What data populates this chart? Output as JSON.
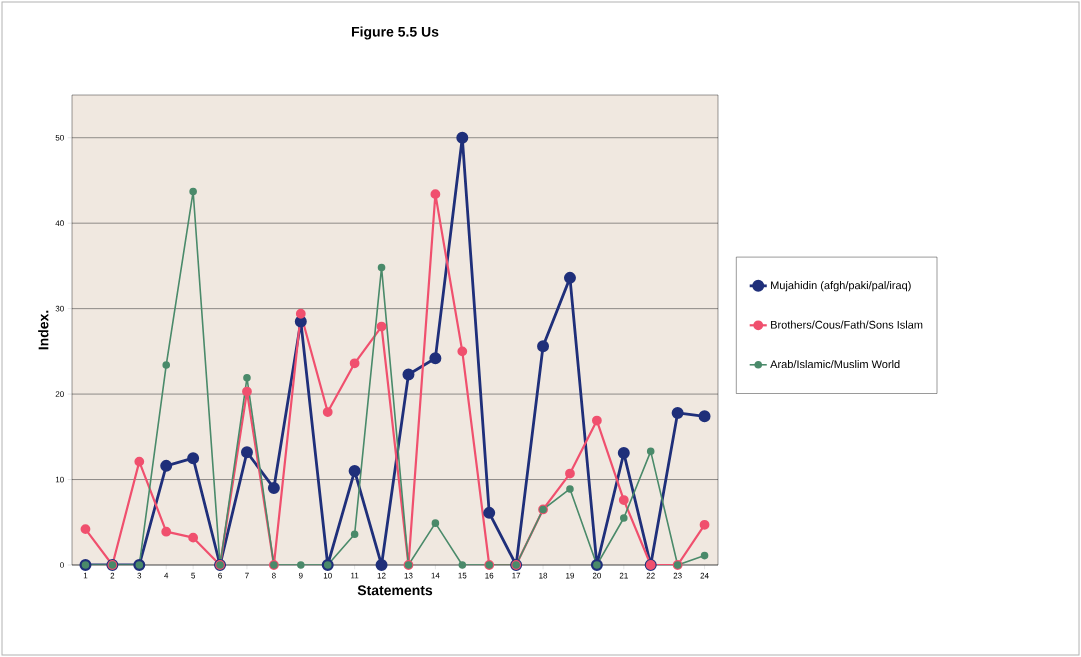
{
  "chart_data": {
    "type": "line",
    "title": "Figure 5.5   Us",
    "xlabel": "Statements",
    "ylabel": "Index.",
    "categories": [
      "1",
      "2",
      "3",
      "4",
      "5",
      "6",
      "7",
      "8",
      "9",
      "10",
      "11",
      "12",
      "13",
      "14",
      "15",
      "16",
      "17",
      "18",
      "19",
      "20",
      "21",
      "22",
      "23",
      "24"
    ],
    "series": [
      {
        "name": "Mujahidin (afgh/paki/pal/iraq)",
        "color": "#1f2f7a",
        "values": [
          0,
          0,
          0,
          11.6,
          12.5,
          0,
          13.2,
          9,
          28.5,
          0,
          11,
          0,
          22.3,
          24.2,
          50,
          6.1,
          0,
          25.6,
          33.6,
          0,
          13.1,
          0,
          17.8,
          17.4
        ]
      },
      {
        "name": "Brothers/Cous/Fath/Sons Islam",
        "color": "#f0506e",
        "values": [
          4.2,
          0,
          12.1,
          3.9,
          3.2,
          0,
          20.3,
          0,
          29.4,
          17.9,
          23.6,
          27.9,
          0,
          43.4,
          25,
          0,
          0,
          6.5,
          10.7,
          16.9,
          7.6,
          0,
          0,
          4.7
        ]
      },
      {
        "name": "Arab/Islamic/Muslim World",
        "color": "#4a8a6a",
        "values": [
          0,
          0,
          0,
          23.4,
          43.7,
          0,
          21.9,
          0,
          0,
          0,
          3.6,
          34.8,
          0,
          4.9,
          0,
          0,
          0,
          6.5,
          8.9,
          0,
          5.5,
          13.3,
          0,
          1.1
        ]
      }
    ],
    "ylim": [
      0,
      55
    ],
    "yticks": [
      0,
      10,
      20,
      30,
      40,
      50
    ],
    "grid": "y",
    "legend": "right",
    "marker": "circle",
    "line_style": "solid"
  }
}
